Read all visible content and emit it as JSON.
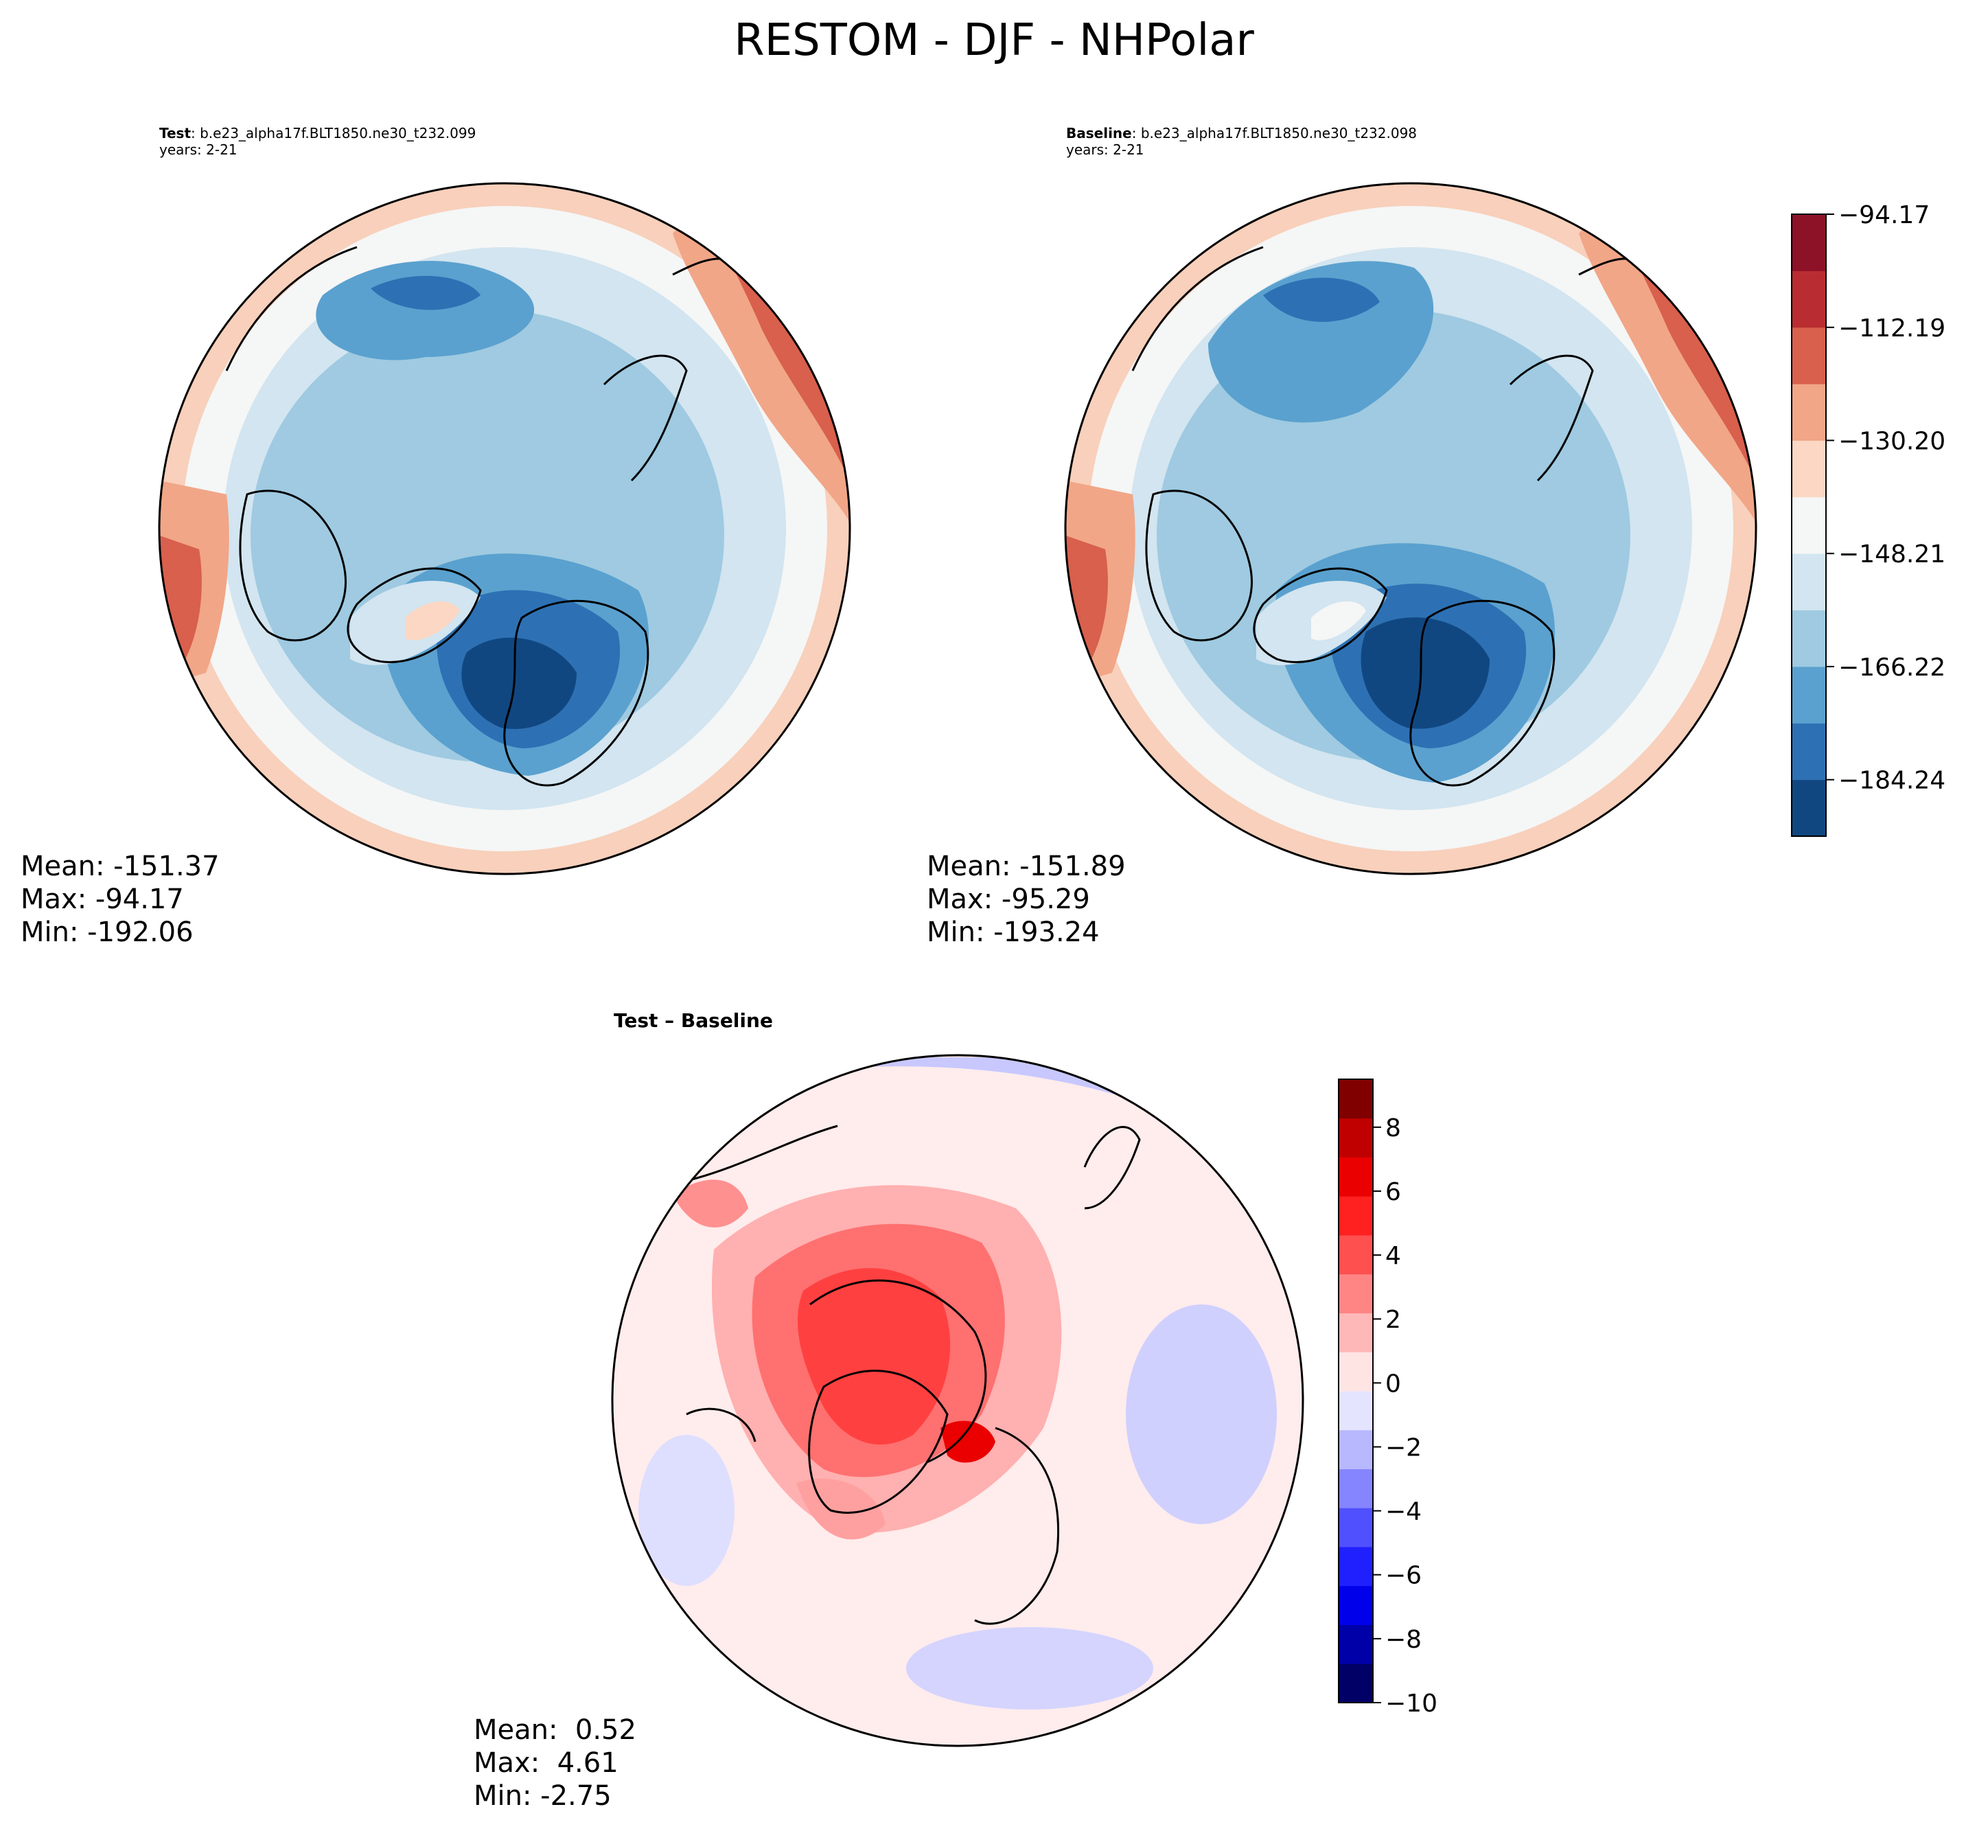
{
  "figure_title": "RESTOM - DJF - NHPolar",
  "panels": {
    "test": {
      "label_bold": "Test",
      "label_rest": ": b.e23_alpha17f.BLT1850.ne30_t232.099",
      "years": "years: 2-21",
      "stats": {
        "mean": "Mean: -151.37",
        "max": "Max: -94.17",
        "min": "Min: -192.06"
      }
    },
    "baseline": {
      "label_bold": "Baseline",
      "label_rest": ": b.e23_alpha17f.BLT1850.ne30_t232.098",
      "years": "years: 2-21",
      "stats": {
        "mean": "Mean: -151.89",
        "max": "Max: -95.29",
        "min": "Min: -193.24"
      }
    },
    "diff": {
      "title": "Test – Baseline",
      "stats": {
        "mean": "Mean:  0.52",
        "max": "Max:  4.61",
        "min": "Min: -2.75"
      }
    }
  },
  "chart_data": [
    {
      "type": "heatmap",
      "name": "Test",
      "projection": "north-polar-stereographic",
      "variable": "RESTOM",
      "season": "DJF",
      "mean": -151.37,
      "max": -94.17,
      "min": -192.06
    },
    {
      "type": "heatmap",
      "name": "Baseline",
      "projection": "north-polar-stereographic",
      "variable": "RESTOM",
      "season": "DJF",
      "mean": -151.89,
      "max": -95.29,
      "min": -193.24
    },
    {
      "type": "heatmap",
      "name": "Test - Baseline",
      "projection": "north-polar-stereographic",
      "mean": 0.52,
      "max": 4.61,
      "min": -2.75
    }
  ],
  "colorbar_main": {
    "range": [
      -193.24,
      -94.17
    ],
    "tick_labels": [
      "-94.17",
      "-112.19",
      "-130.20",
      "-148.21",
      "-166.22",
      "-184.24"
    ],
    "tick_values": [
      -94.17,
      -112.19,
      -130.2,
      -148.21,
      -166.22,
      -184.24
    ],
    "colors": [
      "#114781",
      "#2d71b4",
      "#5aa1cf",
      "#9fcae1",
      "#d2e5f0",
      "#f5f6f6",
      "#fbd7c4",
      "#f1a687",
      "#d8604d",
      "#b92d32",
      "#8d1127"
    ]
  },
  "colorbar_diff": {
    "range": [
      -10,
      9.5
    ],
    "tick_labels": [
      "8",
      "6",
      "4",
      "2",
      "0",
      "−2",
      "−4",
      "−6",
      "−8",
      "−10"
    ],
    "tick_values": [
      8,
      6,
      4,
      2,
      0,
      -2,
      -4,
      -6,
      -8,
      -10
    ],
    "colors_bottom_to_top": [
      "#000066",
      "#0000a8",
      "#0000ea",
      "#2020ff",
      "#5050ff",
      "#8585ff",
      "#b8b8ff",
      "#e4e4ff",
      "#ffe4e4",
      "#ffb8b8",
      "#ff8585",
      "#ff5050",
      "#ff2020",
      "#ea0000",
      "#c00000",
      "#800000"
    ]
  }
}
